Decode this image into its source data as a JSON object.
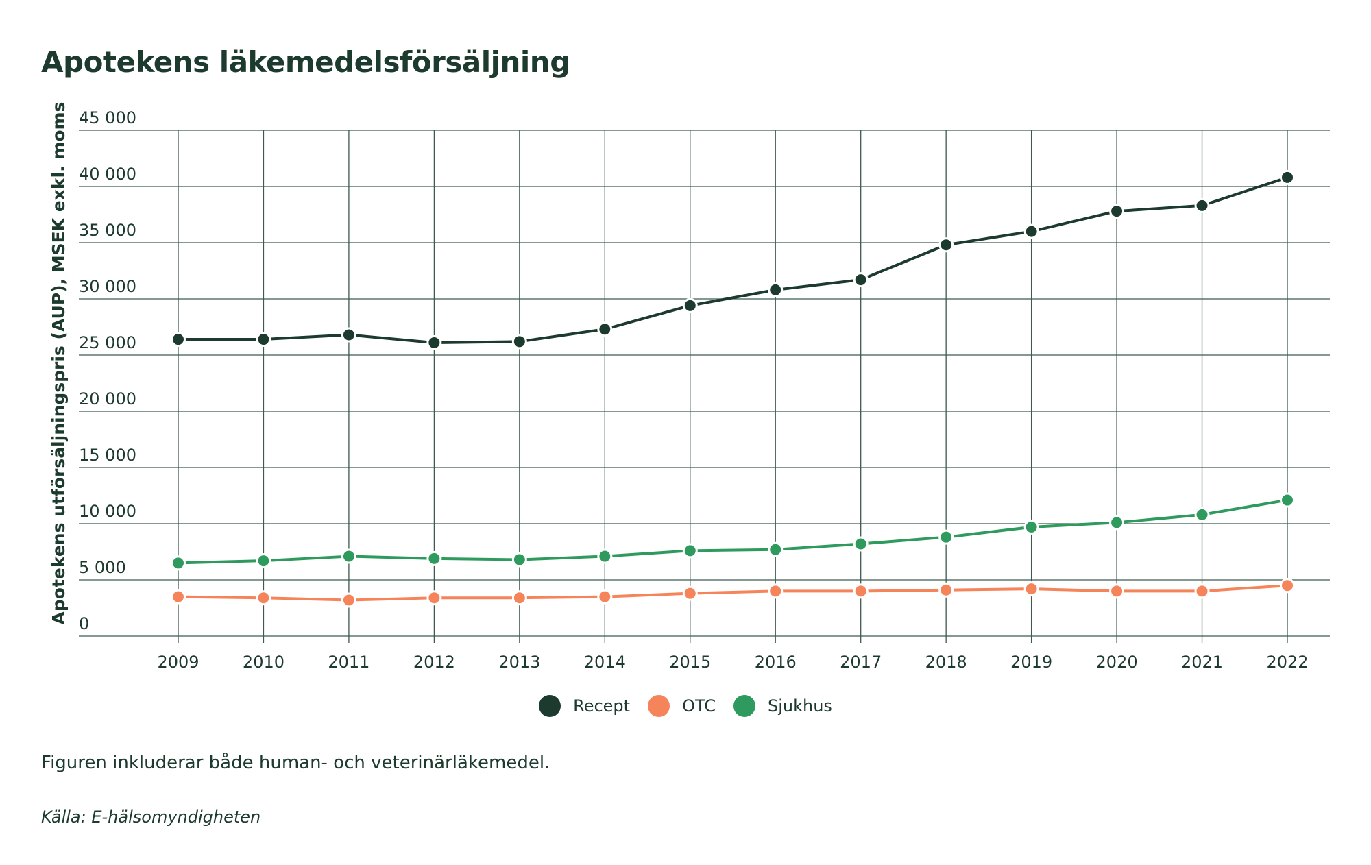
{
  "title": "Apotekens läkemedelsförsäljning",
  "chart_data": {
    "type": "line",
    "ylabel": "Apotekens utförsäljningspris (AUP), MSEK exkl. moms",
    "xlabel": "",
    "ylim": [
      0,
      45000
    ],
    "yticks": [
      {
        "value": 0,
        "label": "0"
      },
      {
        "value": 5000,
        "label": "5 000"
      },
      {
        "value": 10000,
        "label": "10 000"
      },
      {
        "value": 15000,
        "label": "15 000"
      },
      {
        "value": 20000,
        "label": "20 000"
      },
      {
        "value": 25000,
        "label": "25 000"
      },
      {
        "value": 30000,
        "label": "30 000"
      },
      {
        "value": 35000,
        "label": "35 000"
      },
      {
        "value": 40000,
        "label": "40 000"
      },
      {
        "value": 45000,
        "label": "45 000"
      }
    ],
    "categories": [
      "2009",
      "2010",
      "2011",
      "2012",
      "2013",
      "2014",
      "2015",
      "2016",
      "2017",
      "2018",
      "2019",
      "2020",
      "2021",
      "2022"
    ],
    "grid": true,
    "legend_position": "bottom-center",
    "series": [
      {
        "name": "Recept",
        "color": "#1c3a2e",
        "values": [
          26400,
          26400,
          26800,
          26100,
          26200,
          27300,
          29400,
          30800,
          31700,
          34800,
          36000,
          37800,
          38300,
          40800
        ]
      },
      {
        "name": "OTC",
        "color": "#f6845a",
        "values": [
          3500,
          3400,
          3200,
          3400,
          3400,
          3500,
          3800,
          4000,
          4000,
          4100,
          4200,
          4000,
          4000,
          4500
        ]
      },
      {
        "name": "Sjukhus",
        "color": "#2e9a5e",
        "values": [
          6500,
          6700,
          7100,
          6900,
          6800,
          7100,
          7600,
          7700,
          8200,
          8800,
          9700,
          10100,
          10800,
          12100
        ]
      }
    ]
  },
  "note": "Figuren inkluderar både human- och veterinärläkemedel.",
  "source": "Källa: E-hälsomyndigheten"
}
